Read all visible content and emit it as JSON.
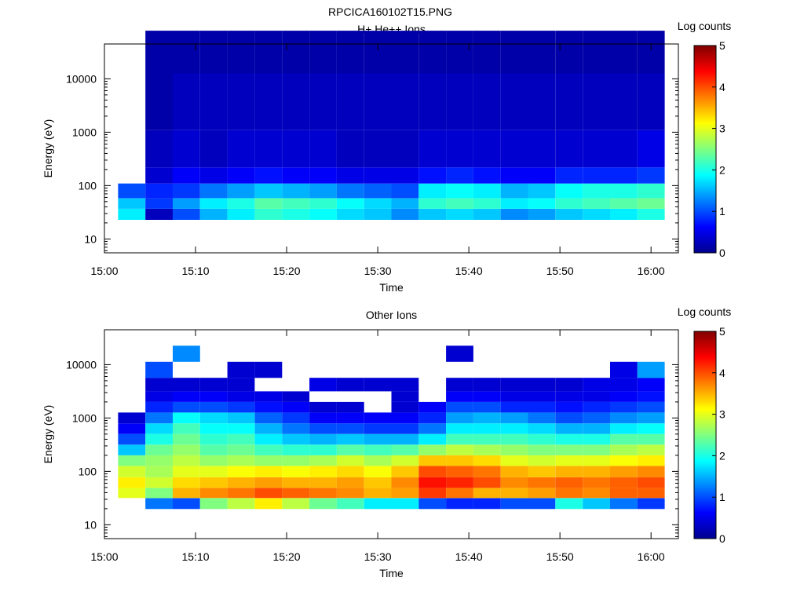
{
  "figure_title": "RPCICA160102T15.PNG",
  "chart_data": [
    {
      "type": "heatmap",
      "title": "H+ He++ Ions",
      "xlabel": "Time",
      "ylabel": "Energy (eV)",
      "y_scale": "log",
      "ylim": [
        5.5,
        45000
      ],
      "xlim": [
        "15:00",
        "16:03"
      ],
      "x_ticks": [
        "15:00",
        "15:10",
        "15:20",
        "15:30",
        "15:40",
        "15:50",
        "16:00"
      ],
      "y_ticks": [
        "10",
        "100",
        "1000",
        "10000"
      ],
      "colorbar": {
        "label": "Log counts",
        "range": [
          0,
          5
        ],
        "ticks": [
          "0",
          "1",
          "2",
          "3",
          "4",
          "5"
        ]
      },
      "time_bins": [
        "15:03",
        "15:06",
        "15:09",
        "15:12",
        "15:15",
        "15:18",
        "15:21",
        "15:24",
        "15:27",
        "15:30",
        "15:33",
        "15:36",
        "15:39",
        "15:42",
        "15:45",
        "15:48",
        "15:51",
        "15:54",
        "15:57",
        "16:00"
      ],
      "low_energy_ev": [
        30,
        45,
        75,
        160,
        300,
        4000,
        40000
      ],
      "low_energy_log_counts": [
        [
          1.8,
          1.6,
          1.0,
          null,
          null,
          null,
          null
        ],
        [
          0.3,
          0.9,
          0.8,
          0.4,
          0.3,
          0.2,
          0.2
        ],
        [
          1.0,
          1.4,
          0.9,
          0.6,
          0.4,
          0.3,
          0.2
        ],
        [
          1.5,
          1.8,
          1.2,
          0.5,
          0.3,
          0.3,
          0.2
        ],
        [
          1.8,
          2.0,
          1.4,
          0.6,
          0.4,
          0.3,
          0.2
        ],
        [
          2.1,
          2.3,
          1.6,
          0.7,
          0.4,
          0.3,
          0.2
        ],
        [
          2.0,
          2.2,
          1.5,
          0.6,
          0.4,
          0.3,
          0.2
        ],
        [
          1.9,
          2.1,
          1.4,
          0.6,
          0.4,
          0.3,
          0.2
        ],
        [
          1.7,
          1.9,
          1.2,
          0.5,
          0.3,
          0.3,
          0.2
        ],
        [
          1.6,
          1.7,
          1.1,
          0.5,
          0.3,
          0.3,
          0.2
        ],
        [
          1.3,
          1.5,
          1.0,
          0.5,
          0.3,
          0.3,
          0.2
        ],
        [
          1.6,
          2.1,
          1.8,
          0.7,
          0.4,
          0.3,
          0.2
        ],
        [
          1.7,
          2.2,
          1.9,
          0.8,
          0.4,
          0.3,
          0.2
        ],
        [
          1.6,
          2.1,
          1.8,
          0.7,
          0.4,
          0.3,
          0.2
        ],
        [
          1.3,
          1.8,
          1.5,
          0.6,
          0.4,
          0.3,
          0.2
        ],
        [
          1.4,
          1.9,
          1.6,
          0.6,
          0.4,
          0.3,
          0.2
        ],
        [
          1.6,
          2.1,
          1.9,
          0.8,
          0.4,
          0.3,
          0.2
        ],
        [
          1.7,
          2.2,
          2.0,
          0.8,
          0.4,
          0.3,
          0.2
        ],
        [
          1.8,
          2.3,
          2.0,
          0.8,
          0.4,
          0.3,
          0.2
        ],
        [
          2.0,
          2.4,
          2.1,
          0.9,
          0.5,
          0.3,
          0.2
        ]
      ]
    },
    {
      "type": "heatmap",
      "title": "Other Ions",
      "xlabel": "Time",
      "ylabel": "Energy (eV)",
      "y_scale": "log",
      "ylim": [
        5.5,
        45000
      ],
      "xlim": [
        "15:00",
        "16:03"
      ],
      "x_ticks": [
        "15:00",
        "15:10",
        "15:20",
        "15:30",
        "15:40",
        "15:50",
        "16:00"
      ],
      "y_ticks": [
        "10",
        "100",
        "1000",
        "10000"
      ],
      "colorbar": {
        "label": "Log counts",
        "range": [
          0,
          5
        ],
        "ticks": [
          "0",
          "1",
          "2",
          "3",
          "4",
          "5"
        ]
      },
      "time_bins": [
        "15:03",
        "15:06",
        "15:09",
        "15:12",
        "15:15",
        "15:18",
        "15:21",
        "15:24",
        "15:27",
        "15:30",
        "15:33",
        "15:36",
        "15:39",
        "15:42",
        "15:45",
        "15:48",
        "15:51",
        "15:54",
        "15:57",
        "16:00"
      ],
      "energy_ev": [
        25,
        40,
        60,
        100,
        160,
        250,
        400,
        630,
        1000,
        1600,
        2500,
        4000,
        8000,
        16000
      ],
      "log_counts": [
        [
          null,
          3.0,
          3.2,
          2.9,
          2.5,
          1.6,
          1.0,
          0.6,
          0.4,
          null,
          null,
          null,
          null,
          null
        ],
        [
          1.2,
          2.5,
          2.9,
          2.7,
          2.6,
          2.4,
          2.0,
          1.7,
          1.2,
          0.8,
          0.5,
          0.4,
          1.0,
          null
        ],
        [
          1.0,
          3.5,
          3.3,
          3.0,
          2.8,
          2.6,
          2.4,
          2.2,
          1.9,
          1.0,
          0.6,
          0.4,
          null,
          1.3
        ],
        [
          2.5,
          3.7,
          3.4,
          3.0,
          2.6,
          2.3,
          2.1,
          1.9,
          1.7,
          1.0,
          0.6,
          0.4,
          null,
          null
        ],
        [
          2.8,
          3.8,
          3.5,
          3.1,
          2.7,
          2.4,
          2.2,
          1.9,
          1.6,
          0.9,
          0.5,
          0.4,
          0.4,
          null
        ],
        [
          3.2,
          4.0,
          3.6,
          3.2,
          2.6,
          2.2,
          1.8,
          1.5,
          1.1,
          0.7,
          0.5,
          null,
          0.4,
          null
        ],
        [
          2.8,
          3.9,
          3.5,
          3.1,
          2.6,
          2.1,
          1.6,
          1.2,
          0.9,
          0.6,
          0.4,
          null,
          null,
          null
        ],
        [
          2.4,
          3.8,
          3.5,
          3.2,
          2.7,
          2.1,
          1.5,
          1.0,
          0.6,
          0.4,
          null,
          0.5,
          null,
          null
        ],
        [
          2.2,
          3.7,
          3.6,
          3.3,
          2.9,
          2.3,
          1.6,
          1.0,
          0.6,
          0.4,
          null,
          0.4,
          null,
          null
        ],
        [
          1.8,
          3.5,
          3.4,
          3.1,
          2.7,
          2.2,
          1.5,
          0.9,
          0.6,
          null,
          null,
          0.4,
          null,
          null
        ],
        [
          1.8,
          3.6,
          3.7,
          3.4,
          2.9,
          2.3,
          1.5,
          0.9,
          0.6,
          0.4,
          0.4,
          0.4,
          null,
          null
        ],
        [
          1.0,
          4.1,
          4.3,
          4.0,
          3.4,
          2.6,
          1.8,
          1.2,
          0.8,
          0.6,
          null,
          null,
          null,
          null
        ],
        [
          0.8,
          3.8,
          4.2,
          3.9,
          3.4,
          2.8,
          2.2,
          1.8,
          1.4,
          1.0,
          0.6,
          0.4,
          null,
          0.4
        ],
        [
          0.8,
          3.5,
          4.0,
          3.8,
          3.3,
          2.7,
          2.2,
          1.8,
          1.5,
          1.0,
          0.6,
          0.4,
          null,
          null
        ],
        [
          1.0,
          3.5,
          3.7,
          3.5,
          3.0,
          2.6,
          2.2,
          1.8,
          1.4,
          0.8,
          0.5,
          0.4,
          null,
          null
        ],
        [
          1.0,
          3.6,
          3.8,
          3.4,
          2.9,
          2.5,
          2.1,
          1.7,
          1.2,
          0.8,
          0.5,
          0.4,
          null,
          null
        ],
        [
          2.0,
          3.8,
          3.9,
          3.5,
          3.0,
          2.5,
          2.0,
          1.5,
          1.0,
          0.7,
          0.5,
          0.4,
          null,
          null
        ],
        [
          1.6,
          3.7,
          3.8,
          3.5,
          3.0,
          2.5,
          2.0,
          1.5,
          1.1,
          0.8,
          0.5,
          0.5,
          null,
          null
        ],
        [
          1.2,
          3.9,
          3.9,
          3.6,
          3.1,
          2.7,
          2.3,
          1.8,
          1.3,
          0.9,
          0.6,
          0.5,
          0.5,
          null
        ],
        [
          0.9,
          3.9,
          4.0,
          3.7,
          3.2,
          2.8,
          2.3,
          1.9,
          1.4,
          1.0,
          0.7,
          0.6,
          1.4,
          null
        ]
      ]
    }
  ]
}
